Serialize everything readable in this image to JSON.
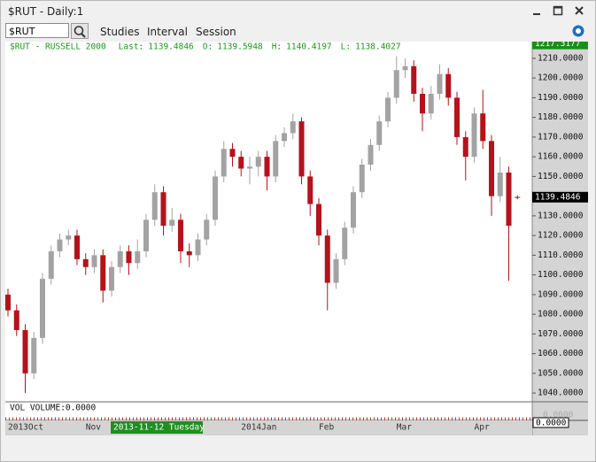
{
  "window": {
    "title": "$RUT - Daily:1"
  },
  "toolbar": {
    "symbol": "$RUT",
    "menus": [
      "Studies",
      "Interval",
      "Session"
    ]
  },
  "chart_data": {
    "type": "candlestick",
    "title": "$RUT - RUSSELL 2000",
    "header_labels": {
      "last": "Last:",
      "open": "O:",
      "high": "H:",
      "low": "L:"
    },
    "up_color": "#a3a3a3",
    "down_color": "#b5121b",
    "categories": [
      "2013Oct",
      null,
      null,
      null,
      null,
      null,
      null,
      null,
      null,
      "Nov",
      null,
      null,
      null,
      null,
      null,
      null,
      null,
      null,
      null,
      null,
      null,
      null,
      null,
      null,
      null,
      null,
      null,
      "2014Jan",
      null,
      null,
      null,
      null,
      null,
      null,
      null,
      null,
      "Feb",
      null,
      null,
      null,
      null,
      null,
      null,
      null,
      null,
      "Mar",
      null,
      null,
      null,
      null,
      null,
      null,
      null,
      null,
      "Apr",
      null,
      null,
      null,
      null,
      null
    ],
    "cursor_label": "2013-11-12 Tuesday",
    "open": [
      1090,
      1082,
      1072,
      1050,
      1068,
      1098,
      1112,
      1118,
      1120,
      1108,
      1104,
      1110,
      1092,
      1104,
      1112,
      1106,
      1112,
      1128,
      1142,
      1125,
      1128,
      1112,
      1110,
      1118,
      1128,
      1150,
      1164,
      1160,
      1154,
      1155,
      1160,
      1150,
      1168,
      1172,
      1178,
      1150,
      1136,
      1120,
      1096,
      1108,
      1124,
      1142,
      1156,
      1166,
      1178,
      1190,
      1204,
      1206,
      1192,
      1182,
      1192,
      1202,
      1190,
      1170,
      1160,
      1182,
      1168,
      1140,
      1152,
      1139.5948
    ],
    "high": [
      1093,
      1085,
      1075,
      1071,
      1101,
      1115,
      1121,
      1123,
      1123,
      1111,
      1113,
      1113,
      1107,
      1115,
      1115,
      1118,
      1131,
      1146,
      1145,
      1134,
      1131,
      1116,
      1121,
      1131,
      1153,
      1168,
      1167,
      1163,
      1160,
      1163,
      1163,
      1171,
      1175,
      1182,
      1180,
      1153,
      1139,
      1123,
      1111,
      1127,
      1145,
      1159,
      1169,
      1181,
      1193,
      1211,
      1210,
      1209,
      1195,
      1196,
      1207,
      1205,
      1193,
      1173,
      1185,
      1194,
      1171,
      1160,
      1155,
      1140.4197
    ],
    "low": [
      1079,
      1069,
      1040,
      1047,
      1065,
      1095,
      1109,
      1115,
      1105,
      1100,
      1101,
      1086,
      1089,
      1101,
      1100,
      1103,
      1109,
      1125,
      1120,
      1122,
      1106,
      1104,
      1107,
      1115,
      1125,
      1147,
      1155,
      1150,
      1146,
      1150,
      1143,
      1147,
      1165,
      1169,
      1146,
      1130,
      1115,
      1082,
      1093,
      1105,
      1121,
      1139,
      1153,
      1163,
      1175,
      1187,
      1200,
      1188,
      1173,
      1179,
      1189,
      1186,
      1166,
      1148,
      1157,
      1164,
      1130,
      1137,
      1097,
      1138.4027
    ],
    "close": [
      1082,
      1072,
      1050,
      1068,
      1098,
      1112,
      1118,
      1120,
      1108,
      1104,
      1110,
      1092,
      1104,
      1112,
      1106,
      1112,
      1128,
      1142,
      1125,
      1128,
      1112,
      1110,
      1118,
      1128,
      1150,
      1164,
      1160,
      1154,
      1155,
      1160,
      1150,
      1168,
      1172,
      1178,
      1150,
      1136,
      1120,
      1096,
      1108,
      1124,
      1142,
      1156,
      1166,
      1178,
      1190,
      1204,
      1206,
      1192,
      1182,
      1192,
      1202,
      1190,
      1170,
      1160,
      1182,
      1168,
      1140,
      1152,
      1125,
      1139.4846
    ],
    "ylim": [
      1036,
      1218.5
    ],
    "yticks": [
      {
        "value": 1040,
        "label": "1040.0000"
      },
      {
        "value": 1050,
        "label": "1050.0000"
      },
      {
        "value": 1060,
        "label": "1060.0000"
      },
      {
        "value": 1070,
        "label": "1070.0000"
      },
      {
        "value": 1080,
        "label": "1080.0000"
      },
      {
        "value": 1090,
        "label": "1090.0000"
      },
      {
        "value": 1100,
        "label": "1100.0000"
      },
      {
        "value": 1110,
        "label": "1110.0000"
      },
      {
        "value": 1120,
        "label": "1120.0000"
      },
      {
        "value": 1130,
        "label": "1130.0000"
      },
      {
        "value": 1140,
        "label": "1140.0000"
      },
      {
        "value": 1150,
        "label": "1150.0000"
      },
      {
        "value": 1160,
        "label": "1160.0000"
      },
      {
        "value": 1170,
        "label": "1170.0000"
      },
      {
        "value": 1180,
        "label": "1180.0000"
      },
      {
        "value": 1190,
        "label": "1190.0000"
      },
      {
        "value": 1200,
        "label": "1200.0000"
      },
      {
        "value": 1210,
        "label": "1210.0000"
      }
    ],
    "high_marker": 1217.3177,
    "volume": {
      "label": "VOL  VOLUME:0.0000",
      "tick": "0.0000",
      "last": "0.0000"
    }
  }
}
